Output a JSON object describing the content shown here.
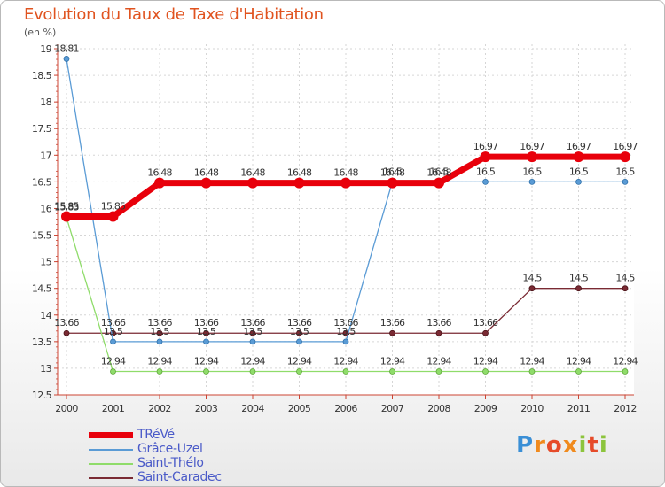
{
  "header": {
    "title": "Evolution du Taux de Taxe d'Habitation",
    "subtitle": "(en %)"
  },
  "logo": {
    "text": "Proxiti"
  },
  "chart_data": {
    "type": "line",
    "title": "Evolution du Taux de Taxe d'Habitation",
    "ylabel": "(en %)",
    "xlabel": "",
    "ylim": [
      12.5,
      19
    ],
    "yticks": [
      12.5,
      13,
      13.5,
      14,
      14.5,
      15,
      15.5,
      16,
      16.5,
      17,
      17.5,
      18,
      18.5,
      19
    ],
    "ytick_labels": [
      "12.5",
      "13",
      "13.5",
      "14",
      "14.5",
      "15",
      "15.5",
      "16",
      "16.5",
      "17",
      "17.5",
      "18",
      "18.5",
      "19"
    ],
    "x": [
      "2000",
      "2001",
      "2002",
      "2003",
      "2004",
      "2005",
      "2006",
      "2007",
      "2008",
      "2009",
      "2010",
      "2011",
      "2012"
    ],
    "grid": true,
    "legend_position": "bottom-left",
    "series": [
      {
        "name": "TRéVé",
        "color": "#e8000b",
        "values": [
          15.85,
          15.85,
          16.48,
          16.48,
          16.48,
          16.48,
          16.48,
          16.48,
          16.48,
          16.97,
          16.97,
          16.97,
          16.97
        ],
        "labels": [
          "15.85",
          "15.85",
          "16.48",
          "16.48",
          "16.48",
          "16.48",
          "16.48",
          "16.48",
          "16.48",
          "16.97",
          "16.97",
          "16.97",
          "16.97"
        ]
      },
      {
        "name": "Grâce-Uzel",
        "color": "#5a9bd5",
        "values": [
          18.81,
          13.5,
          13.5,
          13.5,
          13.5,
          13.5,
          13.5,
          16.5,
          16.5,
          16.5,
          16.5,
          16.5,
          16.5
        ],
        "labels": [
          "18.81",
          "13.5",
          "13.5",
          "13.5",
          "13.5",
          "13.5",
          "13.5",
          "16.5",
          "16.5",
          "16.5",
          "16.5",
          "16.5",
          "16.5"
        ]
      },
      {
        "name": "Saint-Thélo",
        "color": "#8fdc6a",
        "values": [
          15.83,
          12.94,
          12.94,
          12.94,
          12.94,
          12.94,
          12.94,
          12.94,
          12.94,
          12.94,
          12.94,
          12.94,
          12.94
        ],
        "labels": [
          "15.83",
          "12.94",
          "12.94",
          "12.94",
          "12.94",
          "12.94",
          "12.94",
          "12.94",
          "12.94",
          "12.94",
          "12.94",
          "12.94",
          "12.94"
        ]
      },
      {
        "name": "Saint-Caradec",
        "color": "#7a2a33",
        "values": [
          13.66,
          13.66,
          13.66,
          13.66,
          13.66,
          13.66,
          13.66,
          13.66,
          13.66,
          13.66,
          14.5,
          14.5,
          14.5
        ],
        "labels": [
          "13.66",
          "13.66",
          "13.66",
          "13.66",
          "13.66",
          "13.66",
          "13.66",
          "13.66",
          "13.66",
          "13.66",
          "14.5",
          "14.5",
          "14.5"
        ]
      }
    ]
  }
}
